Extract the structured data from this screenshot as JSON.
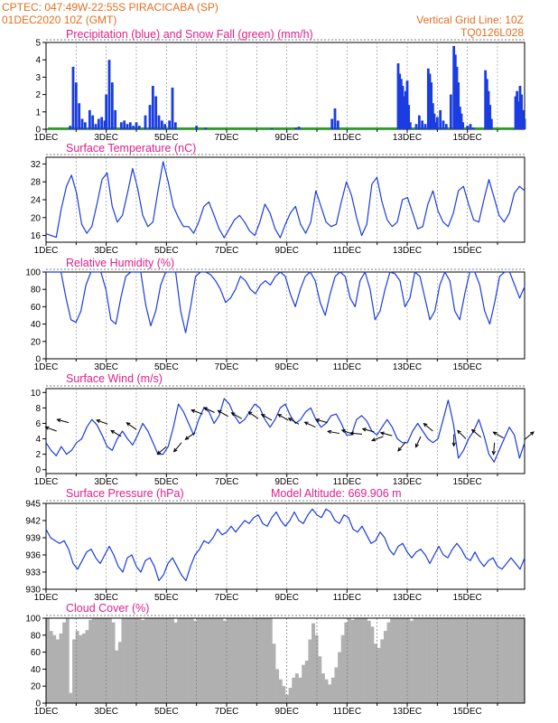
{
  "header": {
    "left_line1": "CPTEC:   047:49W-22:55S   PIRACICABA (SP)",
    "left_line2": "01DEC2020 10Z (GMT)",
    "right_line1": "Vertical Grid Line: 10Z",
    "right_line2": "TQ0126L028"
  },
  "colors": {
    "header": "#e07020",
    "panel_title": "#e0208a",
    "precip": "#1a3ce0",
    "snow": "#12b012",
    "line": "#1a3ce0",
    "cloud": "#b0b0b0"
  },
  "chart_data": [
    {
      "id": "precip",
      "type": "bar",
      "title": "Precipitation (blue) and Snow Fall (green) (mm/h)",
      "ylim": [
        0,
        5
      ],
      "yticks": [
        "0",
        "1",
        "2",
        "3",
        "4",
        "5"
      ],
      "xlabels": [
        "1DEC",
        "3DEC",
        "5DEC",
        "7DEC",
        "9DEC",
        "11DEC",
        "13DEC",
        "15DEC"
      ],
      "x": [
        0.8,
        0.9,
        1.0,
        1.1,
        1.2,
        1.3,
        1.45,
        1.55,
        1.65,
        1.75,
        1.85,
        1.95,
        2.0,
        2.1,
        2.2,
        2.3,
        2.5,
        2.6,
        2.7,
        2.8,
        2.9,
        3.0,
        3.1,
        3.3,
        3.45,
        3.55,
        3.65,
        3.75,
        3.85,
        3.95,
        4.1,
        4.2,
        4.3,
        5.0,
        5.3,
        7.5,
        8.3,
        8.4,
        9.5,
        9.6,
        9.7,
        11.7,
        11.75,
        11.8,
        11.85,
        11.9,
        11.95,
        12.0,
        12.05,
        12.1,
        12.3,
        12.4,
        12.5,
        12.6,
        12.7,
        12.75,
        12.8,
        12.85,
        12.9,
        12.95,
        13.0,
        13.1,
        13.2,
        13.3,
        13.45,
        13.55,
        13.6,
        13.65,
        13.7,
        13.75,
        13.8,
        13.85,
        14.0,
        14.1,
        14.2,
        14.6,
        14.65,
        14.7,
        14.75,
        14.8,
        15.6,
        15.65,
        15.7,
        15.75,
        15.8,
        15.85,
        15.9
      ],
      "values": [
        0.2,
        3.6,
        2.7,
        1.5,
        0.6,
        0.4,
        1.1,
        0.8,
        0.3,
        0.6,
        0.7,
        0.5,
        2.0,
        4.0,
        2.7,
        1.1,
        0.4,
        0.5,
        0.3,
        0.4,
        0.2,
        0.4,
        0.2,
        0.8,
        1.4,
        2.5,
        1.9,
        0.8,
        0.5,
        0.3,
        0.5,
        2.4,
        0.4,
        0.2,
        0.1,
        0.05,
        0.1,
        0.15,
        0.6,
        1.2,
        0.5,
        3.8,
        3.2,
        2.9,
        2.5,
        1.9,
        2.2,
        2.8,
        1.4,
        0.4,
        0.3,
        0.8,
        0.5,
        0.3,
        3.5,
        3.2,
        2.7,
        1.5,
        0.9,
        0.4,
        0.7,
        1.1,
        0.5,
        0.3,
        2.0,
        4.8,
        4.3,
        3.6,
        2.7,
        1.3,
        0.9,
        0.4,
        0.2,
        0.3,
        0.1,
        3.4,
        2.9,
        2.2,
        1.4,
        0.6,
        1.9,
        2.2,
        1.6,
        2.5,
        2.0,
        1.1,
        0.6
      ],
      "snow_values_all_zero": 0
    },
    {
      "id": "temp",
      "type": "line",
      "title": "Surface Temperature (nC)",
      "ylim": [
        14.5,
        33.5
      ],
      "yticks": [
        "16",
        "20",
        "24",
        "28",
        "32"
      ],
      "ytick_values": [
        16,
        20,
        24,
        28,
        32
      ],
      "xlabels": [
        "1DEC",
        "3DEC",
        "5DEC",
        "7DEC",
        "9DEC",
        "11DEC",
        "13DEC",
        "15DEC"
      ],
      "values": [
        16.4,
        16,
        15.6,
        22,
        27,
        29.5,
        25.5,
        18.5,
        16.5,
        18,
        23,
        28.5,
        30,
        22.5,
        19,
        20.5,
        25.5,
        31,
        26.5,
        20.5,
        18,
        19,
        26,
        32.5,
        28,
        22.5,
        20,
        18,
        18,
        16.5,
        19,
        22.5,
        23.5,
        20.5,
        17.5,
        15.5,
        17.5,
        19.5,
        20.5,
        19,
        17,
        16,
        19,
        23,
        21,
        17.5,
        15.5,
        18.5,
        21,
        22.5,
        18.5,
        16.5,
        19,
        26,
        22.5,
        19,
        18,
        18.5,
        23.5,
        28,
        25,
        20,
        16,
        18.5,
        27.5,
        29,
        23.5,
        19.5,
        18,
        19,
        24,
        24.5,
        21,
        17.5,
        18,
        23,
        26,
        21.5,
        19,
        18,
        21,
        26,
        27,
        23,
        19.5,
        19,
        24,
        28.5,
        24.5,
        20.5,
        19,
        21,
        25.5,
        27,
        26
      ]
    },
    {
      "id": "rh",
      "type": "line",
      "title": "Relative Humidity (%)",
      "ylim": [
        0,
        100
      ],
      "yticks": [
        "0",
        "20",
        "40",
        "60",
        "80",
        "100"
      ],
      "ytick_values": [
        0,
        20,
        40,
        60,
        80,
        100
      ],
      "xlabels": [
        "1DEC",
        "3DEC",
        "5DEC",
        "7DEC",
        "9DEC",
        "11DEC",
        "13DEC",
        "15DEC"
      ],
      "values": [
        100,
        100,
        100,
        100,
        70,
        45,
        42,
        55,
        85,
        100,
        100,
        100,
        80,
        45,
        40,
        70,
        95,
        100,
        100,
        100,
        62,
        38,
        55,
        85,
        100,
        100,
        100,
        55,
        30,
        60,
        95,
        100,
        100,
        97,
        90,
        80,
        65,
        70,
        80,
        95,
        90,
        80,
        75,
        85,
        90,
        85,
        95,
        100,
        95,
        75,
        60,
        80,
        95,
        100,
        90,
        65,
        50,
        75,
        95,
        100,
        95,
        70,
        60,
        90,
        100,
        80,
        45,
        55,
        80,
        100,
        98,
        90,
        60,
        70,
        100,
        95,
        70,
        45,
        55,
        85,
        100,
        90,
        55,
        45,
        75,
        100,
        100,
        85,
        55,
        40,
        65,
        95,
        100,
        100,
        85,
        70,
        83
      ]
    },
    {
      "id": "wind",
      "type": "line",
      "title": "Surface Wind (m/s)",
      "ylim": [
        -0.5,
        10.5
      ],
      "yticks": [
        "0",
        "2",
        "4",
        "6",
        "8",
        "10"
      ],
      "ytick_values": [
        0,
        2,
        4,
        6,
        8,
        10
      ],
      "xlabels": [
        "1DEC",
        "3DEC",
        "5DEC",
        "7DEC",
        "9DEC",
        "11DEC",
        "13DEC",
        "15DEC"
      ],
      "values": [
        3.5,
        2.5,
        1.8,
        3,
        2,
        2.5,
        3.5,
        4,
        5.5,
        6.5,
        5.8,
        4.5,
        3,
        2.5,
        4,
        5,
        4,
        3.2,
        4.5,
        6,
        5,
        3.5,
        2,
        2,
        3,
        5.5,
        8.5,
        7.5,
        6,
        4.5,
        6.5,
        8,
        7.5,
        6,
        7,
        9.2,
        8.5,
        7,
        6,
        6.5,
        7.5,
        8.5,
        8,
        6.5,
        5.5,
        6.5,
        8,
        8.5,
        7,
        6,
        6.5,
        7.5,
        8,
        6.5,
        5.5,
        6,
        7,
        7.2,
        6,
        4.5,
        4.5,
        6.5,
        7,
        6.3,
        5,
        4.5,
        5.5,
        6.5,
        5.5,
        4,
        3.5,
        3.5,
        5,
        6,
        5,
        4,
        3.5,
        4,
        6.5,
        9,
        6,
        1.5,
        2.5,
        4,
        5,
        6.5,
        4.5,
        2,
        1,
        2.5,
        4,
        5.5,
        4.5,
        1.5,
        3.5
      ],
      "arrows": [
        {
          "x": 0.35,
          "y": 5.0,
          "deg": 160
        },
        {
          "x": 0.75,
          "y": 6.1,
          "deg": 165
        },
        {
          "x": 2.05,
          "y": 5.9,
          "deg": 160
        },
        {
          "x": 2.5,
          "y": 4.3,
          "deg": 150
        },
        {
          "x": 3.0,
          "y": 5.2,
          "deg": 145
        },
        {
          "x": 4.0,
          "y": 3.0,
          "deg": 220
        },
        {
          "x": 4.5,
          "y": 3.5,
          "deg": 230
        },
        {
          "x": 4.95,
          "y": 4.8,
          "deg": 215
        },
        {
          "x": 5.2,
          "y": 7.2,
          "deg": 160
        },
        {
          "x": 5.6,
          "y": 7.4,
          "deg": 155
        },
        {
          "x": 6.05,
          "y": 6.9,
          "deg": 150
        },
        {
          "x": 6.5,
          "y": 6.6,
          "deg": 150
        },
        {
          "x": 7.05,
          "y": 6.6,
          "deg": 145
        },
        {
          "x": 7.5,
          "y": 6.4,
          "deg": 150
        },
        {
          "x": 8.05,
          "y": 6.4,
          "deg": 150
        },
        {
          "x": 8.4,
          "y": 5.9,
          "deg": 150
        },
        {
          "x": 8.95,
          "y": 5.5,
          "deg": 155
        },
        {
          "x": 9.35,
          "y": 6.1,
          "deg": 165
        },
        {
          "x": 9.75,
          "y": 4.7,
          "deg": 170
        },
        {
          "x": 10.2,
          "y": 4.6,
          "deg": 160
        },
        {
          "x": 10.5,
          "y": 4.6,
          "deg": 175
        },
        {
          "x": 10.9,
          "y": 4.9,
          "deg": 165
        },
        {
          "x": 11.2,
          "y": 4.3,
          "deg": 200
        },
        {
          "x": 11.5,
          "y": 4.4,
          "deg": 165
        },
        {
          "x": 11.95,
          "y": 3.6,
          "deg": 230
        },
        {
          "x": 12.45,
          "y": 4.3,
          "deg": 245
        },
        {
          "x": 12.85,
          "y": 5.0,
          "deg": 140
        },
        {
          "x": 13.55,
          "y": 4.6,
          "deg": 270
        },
        {
          "x": 13.95,
          "y": 4.0,
          "deg": 135
        },
        {
          "x": 14.45,
          "y": 4.2,
          "deg": 140
        },
        {
          "x": 14.9,
          "y": 3.5,
          "deg": 265
        },
        {
          "x": 15.2,
          "y": 4.1,
          "deg": 150
        },
        {
          "x": 15.9,
          "y": 3.9,
          "deg": 40
        }
      ]
    },
    {
      "id": "pres",
      "type": "line",
      "title": "Surface Pressure (hPa)",
      "subtitle": "Model Altitude: 669.906  m",
      "ylim": [
        930,
        945
      ],
      "yticks": [
        "930",
        "933",
        "936",
        "939",
        "942",
        "945"
      ],
      "ytick_values": [
        930,
        933,
        936,
        939,
        942,
        945
      ],
      "xlabels": [
        "1DEC",
        "3DEC",
        "5DEC",
        "7DEC",
        "9DEC",
        "11DEC",
        "13DEC",
        "15DEC"
      ],
      "values": [
        940.5,
        939,
        938.5,
        938,
        938.5,
        937,
        934.5,
        933.5,
        935,
        936.5,
        937,
        935.5,
        934.5,
        936,
        937.5,
        936,
        934,
        933,
        935.5,
        936,
        934,
        933,
        935,
        935.5,
        934,
        931.5,
        932.5,
        934.5,
        935.5,
        934,
        932.5,
        931.5,
        934,
        936,
        937,
        938.5,
        938,
        939,
        940.5,
        939.5,
        940,
        941,
        940,
        941,
        942,
        941.5,
        942.5,
        943,
        941.5,
        941,
        942.5,
        943.5,
        942,
        941,
        942,
        943.5,
        942,
        941.5,
        943,
        944,
        943,
        942.5,
        944,
        943.5,
        942,
        941.5,
        943,
        942.5,
        940.5,
        940,
        941,
        939.5,
        938,
        938.5,
        940,
        939,
        937,
        936,
        937.5,
        938,
        936.5,
        935.5,
        936.5,
        937,
        936,
        934.5,
        936,
        937.5,
        936,
        935.5,
        937,
        938,
        937,
        935.5,
        935,
        936.5,
        935,
        934,
        935,
        935.5,
        934,
        933.5,
        934.5,
        935.5,
        934.5,
        933.5,
        935.5
      ]
    },
    {
      "id": "cloud",
      "type": "area",
      "title": "Cloud Cover (%)",
      "ylim": [
        0,
        100
      ],
      "yticks": [
        "0",
        "20",
        "40",
        "60",
        "80",
        "100"
      ],
      "ytick_values": [
        0,
        20,
        40,
        60,
        80,
        100
      ],
      "xlabels": [
        "1DEC",
        "3DEC",
        "5DEC",
        "7DEC",
        "9DEC",
        "11DEC",
        "13DEC",
        "15DEC"
      ],
      "values": [
        100,
        85,
        80,
        75,
        82,
        95,
        100,
        12,
        75,
        85,
        80,
        82,
        86,
        98,
        100,
        100,
        100,
        100,
        100,
        100,
        95,
        62,
        72,
        100,
        100,
        100,
        100,
        100,
        100,
        98,
        100,
        100,
        100,
        100,
        100,
        100,
        100,
        100,
        100,
        95,
        100,
        100,
        100,
        100,
        100,
        97,
        100,
        100,
        100,
        100,
        100,
        100,
        100,
        100,
        97,
        100,
        100,
        100,
        100,
        100,
        100,
        100,
        99,
        100,
        100,
        100,
        100,
        100,
        100,
        70,
        40,
        28,
        20,
        10,
        18,
        30,
        35,
        30,
        45,
        50,
        75,
        94,
        80,
        55,
        35,
        28,
        22,
        30,
        42,
        60,
        80,
        95,
        100,
        98,
        100,
        100,
        100,
        100,
        97,
        90,
        70,
        65,
        75,
        85,
        95,
        100,
        100,
        100,
        100,
        100,
        100,
        97,
        100,
        100,
        100,
        100,
        100,
        100,
        100,
        100,
        100,
        100,
        100,
        100,
        100,
        100,
        100,
        100,
        100,
        100,
        100,
        100,
        100,
        100,
        100,
        100,
        100,
        100,
        100,
        100,
        100,
        100,
        100,
        100,
        100,
        100
      ]
    }
  ]
}
